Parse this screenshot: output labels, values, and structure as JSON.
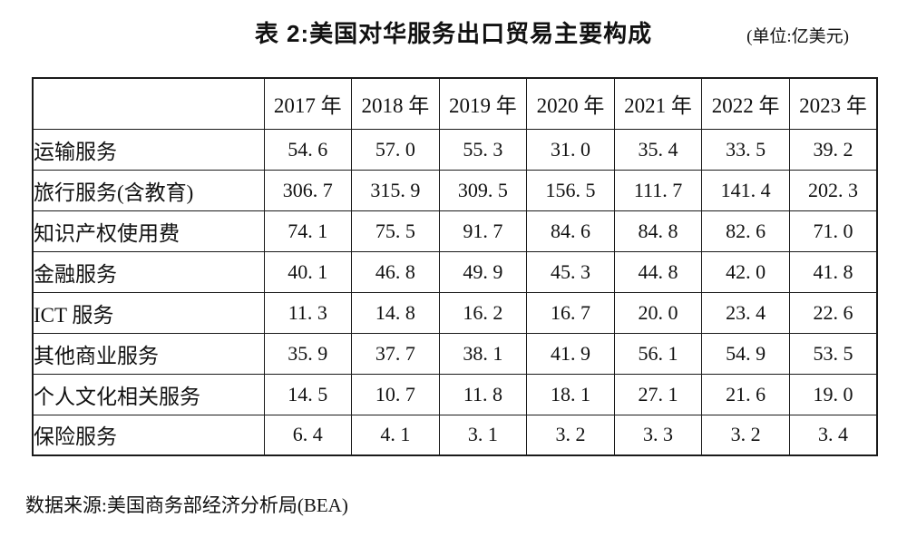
{
  "figure": {
    "title": "表 2:美国对华服务出口贸易主要构成",
    "unit_note": "(单位:亿美元)",
    "source_note": "数据来源:美国商务部经济分析局(BEA)"
  },
  "chart_data": {
    "type": "table",
    "title": "表 2:美国对华服务出口贸易主要构成",
    "unit": "亿美元",
    "columns": [
      "",
      "2017 年",
      "2018 年",
      "2019 年",
      "2020 年",
      "2021 年",
      "2022 年",
      "2023 年"
    ],
    "rows": [
      {
        "label": "运输服务",
        "values": [
          54.6,
          57.0,
          55.3,
          31.0,
          35.4,
          33.5,
          39.2
        ]
      },
      {
        "label": "旅行服务(含教育)",
        "values": [
          306.7,
          315.9,
          309.5,
          156.5,
          111.7,
          141.4,
          202.3
        ]
      },
      {
        "label": "知识产权使用费",
        "values": [
          74.1,
          75.5,
          91.7,
          84.6,
          84.8,
          82.6,
          71.0
        ]
      },
      {
        "label": "金融服务",
        "values": [
          40.1,
          46.8,
          49.9,
          45.3,
          44.8,
          42.0,
          41.8
        ]
      },
      {
        "label": "ICT 服务",
        "values": [
          11.3,
          14.8,
          16.2,
          16.7,
          20.0,
          23.4,
          22.6
        ]
      },
      {
        "label": "其他商业服务",
        "values": [
          35.9,
          37.7,
          38.1,
          41.9,
          56.1,
          54.9,
          53.5
        ]
      },
      {
        "label": "个人文化相关服务",
        "values": [
          14.5,
          10.7,
          11.8,
          18.1,
          27.1,
          21.6,
          19.0
        ]
      },
      {
        "label": "保险服务",
        "values": [
          6.4,
          4.1,
          3.1,
          3.2,
          3.3,
          3.2,
          3.4
        ]
      }
    ],
    "source": "美国商务部经济分析局(BEA)",
    "layout": {
      "grid": true,
      "header_row": true,
      "value_alignment": "center"
    }
  },
  "colors": {
    "text": "#111111",
    "border": "#1a1a1a",
    "background": "#ffffff"
  }
}
